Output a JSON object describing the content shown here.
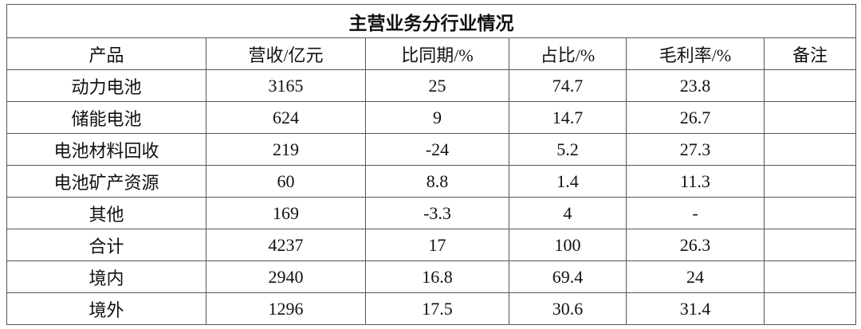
{
  "header": {
    "title": "主营业务分行业情况"
  },
  "table": {
    "columns": [
      "产品",
      "营收/亿元",
      "比同期/%",
      "占比/%",
      "毛利率/%",
      "备注"
    ],
    "rows": [
      [
        "动力电池",
        "3165",
        "25",
        "74.7",
        "23.8"
      ],
      [
        "储能电池",
        "624",
        "9",
        "14.7",
        "26.7"
      ],
      [
        "电池材料回收",
        "219",
        "-24",
        "5.2",
        "27.3"
      ],
      [
        "电池矿产资源",
        "60",
        "8.8",
        "1.4",
        "11.3"
      ],
      [
        "其他",
        "169",
        "-3.3",
        "4",
        "-"
      ],
      [
        "合计",
        "4237",
        "17",
        "100",
        "26.3"
      ],
      [
        "境内",
        "2940",
        "16.8",
        "69.4",
        "24"
      ],
      [
        "境外",
        "1296",
        "17.5",
        "30.6",
        "31.4"
      ]
    ]
  }
}
